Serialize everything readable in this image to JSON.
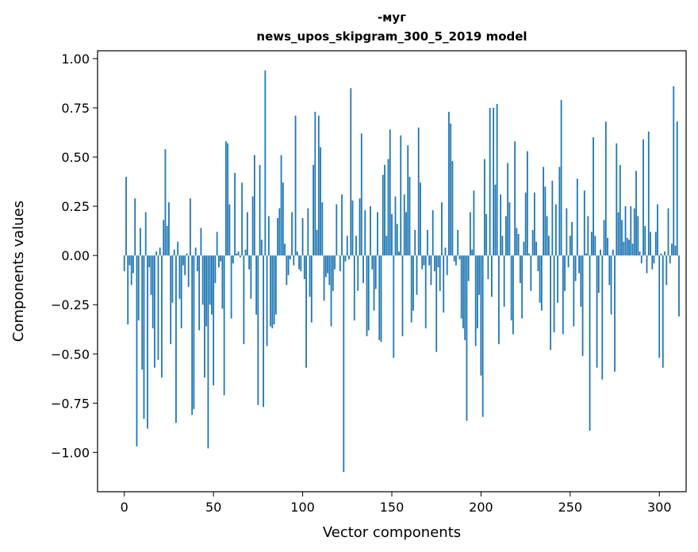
{
  "chart_data": {
    "type": "bar",
    "title_line1": "-муг",
    "title_line2": "news_upos_skipgram_300_5_2019 model",
    "xlabel": "Vector components",
    "ylabel": "Components values",
    "xlim": [
      -15,
      315
    ],
    "ylim": [
      -1.2,
      1.04
    ],
    "x_ticks": [
      0,
      50,
      100,
      150,
      200,
      250,
      300
    ],
    "x_tick_labels": [
      "0",
      "50",
      "100",
      "150",
      "200",
      "250",
      "300"
    ],
    "y_ticks": [
      1.0,
      0.75,
      0.5,
      0.25,
      0.0,
      -0.25,
      -0.5,
      -0.75,
      -1.0
    ],
    "y_tick_labels": [
      "1.00",
      "0.75",
      "0.50",
      "0.25",
      "0.00",
      "−0.25",
      "−0.50",
      "−0.75",
      "−1.00"
    ],
    "bar_color": "#1f77b4",
    "values": [
      -0.08,
      0.4,
      -0.35,
      -0.05,
      -0.15,
      -0.09,
      0.29,
      -0.97,
      -0.33,
      0.14,
      -0.58,
      -0.83,
      0.22,
      -0.88,
      -0.06,
      -0.2,
      -0.37,
      -0.57,
      0.02,
      -0.53,
      0.04,
      -0.62,
      0.18,
      0.54,
      0.15,
      0.27,
      -0.45,
      -0.24,
      0.03,
      -0.85,
      0.07,
      -0.22,
      -0.37,
      -0.05,
      -0.1,
      0.01,
      -0.16,
      0.29,
      -0.81,
      -0.78,
      0.04,
      -0.08,
      -0.38,
      0.14,
      -0.25,
      -0.62,
      -0.36,
      -0.98,
      -0.25,
      -0.3,
      -0.66,
      -0.14,
      0.12,
      -0.06,
      -0.03,
      -0.27,
      -0.71,
      0.58,
      0.57,
      0.26,
      -0.32,
      -0.04,
      0.42,
      0.01,
      0.02,
      -0.01,
      0.37,
      -0.45,
      0.03,
      0.22,
      -0.07,
      -0.22,
      0.3,
      0.51,
      -0.3,
      -0.76,
      0.46,
      0.08,
      -0.77,
      0.94,
      -0.46,
      0.2,
      -0.36,
      -0.37,
      -0.35,
      -0.3,
      0.19,
      0.24,
      0.51,
      0.37,
      0.06,
      -0.15,
      -0.1,
      -0.02,
      0.22,
      -0.05,
      0.71,
      0.02,
      -0.07,
      -0.08,
      0.19,
      -0.12,
      -0.57,
      0.24,
      -0.21,
      -0.34,
      0.46,
      0.73,
      0.13,
      0.71,
      0.55,
      0.27,
      -0.23,
      -0.11,
      -0.09,
      -0.15,
      -0.36,
      -0.18,
      -0.07,
      0.26,
      0.0,
      -0.08,
      0.31,
      -1.1,
      -0.03,
      0.1,
      -0.02,
      0.85,
      0.28,
      -0.33,
      0.1,
      -0.18,
      0.29,
      0.62,
      -0.14,
      0.23,
      -0.41,
      -0.38,
      0.25,
      -0.07,
      -0.28,
      -0.17,
      0.22,
      -0.43,
      -0.44,
      0.41,
      0.46,
      0.1,
      0.49,
      0.64,
      0.21,
      -0.52,
      0.3,
      0.16,
      0.02,
      0.61,
      -0.41,
      0.31,
      0.22,
      0.56,
      0.4,
      -0.34,
      -0.28,
      0.13,
      -0.2,
      0.65,
      0.37,
      -0.07,
      -0.05,
      -0.37,
      0.13,
      -0.05,
      -0.15,
      0.23,
      -0.08,
      -0.49,
      -0.06,
      -0.18,
      0.27,
      -0.29,
      0.04,
      -0.1,
      0.73,
      0.67,
      0.48,
      -0.03,
      -0.05,
      0.13,
      -0.02,
      -0.32,
      -0.37,
      -0.43,
      -0.84,
      -0.13,
      0.22,
      0.03,
      0.33,
      -0.46,
      -0.37,
      -0.2,
      -0.61,
      -0.82,
      0.49,
      0.21,
      -0.12,
      0.75,
      -0.21,
      0.75,
      0.36,
      0.77,
      -0.45,
      0.31,
      0.1,
      -0.26,
      0.2,
      0.47,
      0.27,
      -0.33,
      -0.4,
      0.58,
      0.14,
      0.11,
      -0.14,
      -0.32,
      0.07,
      0.32,
      0.53,
      0.01,
      -0.18,
      0.13,
      0.32,
      0.07,
      -0.08,
      -0.24,
      -0.28,
      0.45,
      0.35,
      0.2,
      0.1,
      -0.48,
      0.38,
      -0.39,
      0.26,
      -0.24,
      0.45,
      0.79,
      -0.4,
      -0.18,
      0.24,
      -0.06,
      0.1,
      0.17,
      -0.36,
      -0.13,
      0.39,
      -0.09,
      -0.26,
      -0.51,
      0.33,
      0.01,
      0.2,
      -0.89,
      0.12,
      0.6,
      0.1,
      -0.57,
      -0.19,
      0.03,
      -0.63,
      0.18,
      0.68,
      0.09,
      -0.15,
      -0.3,
      0.03,
      -0.59,
      0.57,
      0.22,
      0.46,
      0.18,
      0.07,
      0.25,
      0.09,
      0.08,
      0.25,
      0.06,
      0.24,
      0.43,
      0.2,
      0.02,
      -0.04,
      0.59,
      0.15,
      -0.09,
      0.63,
      0.12,
      -0.07,
      -0.04,
      0.12,
      0.26,
      -0.52,
      0.01,
      -0.57,
      0.02,
      -0.15,
      0.24,
      -0.04,
      0.06,
      0.86,
      0.05,
      0.68,
      -0.31
    ]
  }
}
